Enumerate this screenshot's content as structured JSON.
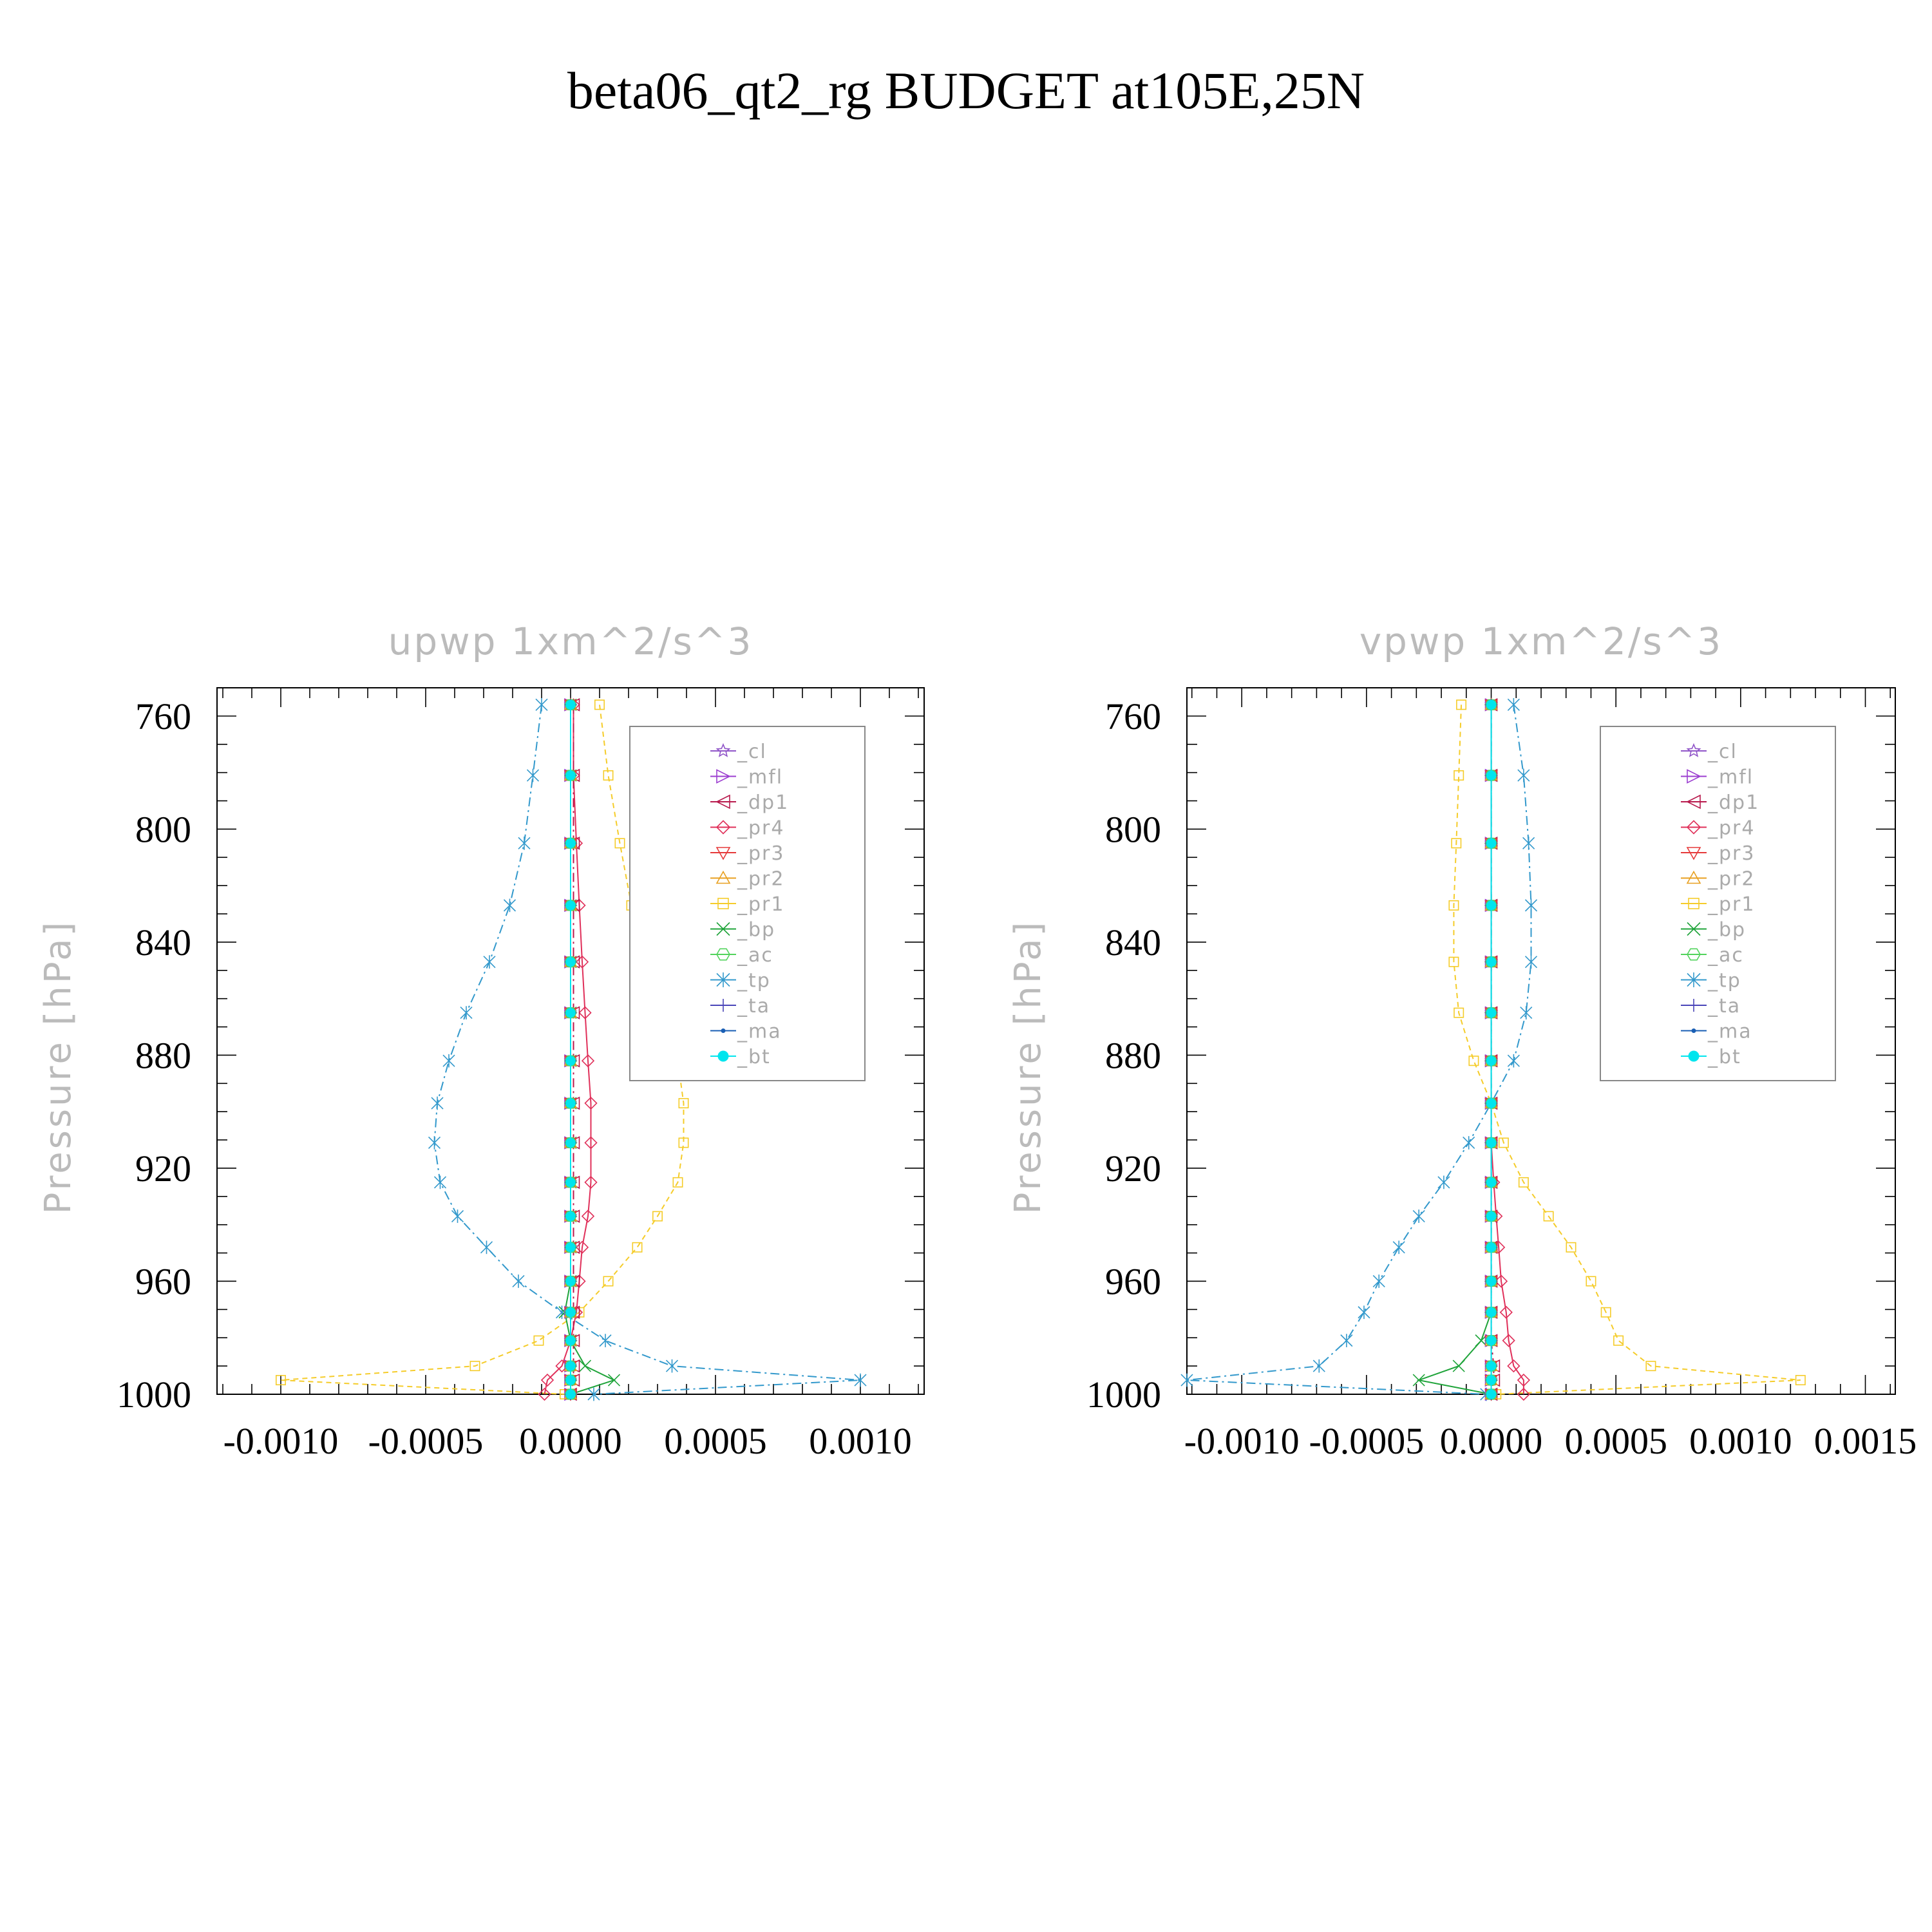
{
  "figure_title": "beta06_qt2_rg  BUDGET at105E,25N",
  "levels": [
    756,
    781,
    805,
    827,
    847,
    865,
    882,
    897,
    911,
    925,
    937,
    948,
    960,
    971,
    981,
    990,
    995,
    1000
  ],
  "series_meta": [
    {
      "key": "cl",
      "label": "_cl",
      "color": "#9055c8",
      "marker": "star",
      "dash": "none"
    },
    {
      "key": "mfl",
      "label": "_mfl",
      "color": "#9c3fd0",
      "marker": "tri-right",
      "dash": "8,6"
    },
    {
      "key": "dp1",
      "label": "_dp1",
      "color": "#b8194c",
      "marker": "tri-left",
      "dash": "14,6,3,6"
    },
    {
      "key": "pr4",
      "label": "_pr4",
      "color": "#e0305a",
      "marker": "diamond",
      "dash": "none"
    },
    {
      "key": "pr3",
      "label": "_pr3",
      "color": "#e63a3a",
      "marker": "tri-down",
      "dash": "8,6"
    },
    {
      "key": "pr2",
      "label": "_pr2",
      "color": "#e8a020",
      "marker": "tri-up",
      "dash": "14,6,3,6"
    },
    {
      "key": "pr1",
      "label": "_pr1",
      "color": "#f5cc2a",
      "marker": "square",
      "dash": "8,6"
    },
    {
      "key": "bp",
      "label": "_bp",
      "color": "#1fa43a",
      "marker": "x",
      "dash": "none"
    },
    {
      "key": "ac",
      "label": "_ac",
      "color": "#52d35c",
      "marker": "hexagon",
      "dash": "8,6"
    },
    {
      "key": "tp",
      "label": "_tp",
      "color": "#3399cc",
      "marker": "asterisk",
      "dash": "14,6,3,6"
    },
    {
      "key": "ta",
      "label": "_ta",
      "color": "#4a45b8",
      "marker": "plus",
      "dash": "8,6"
    },
    {
      "key": "ma",
      "label": "_ma",
      "color": "#1a5fb4",
      "marker": "dot",
      "dash": "14,6,3,6"
    },
    {
      "key": "bt",
      "label": "_bt",
      "color": "#00e5ee",
      "marker": "filled-circle",
      "dash": "none"
    }
  ],
  "chart_data": [
    {
      "type": "line",
      "title": "upwp    1xm^2/s^3",
      "xlabel": "",
      "ylabel": "Pressure  [hPa]",
      "xlim": [
        -0.00122,
        0.00122
      ],
      "ylim": [
        750,
        1000
      ],
      "y_reversed": true,
      "xticks": [
        -0.001,
        -0.0005,
        0,
        0.0005,
        0.001
      ],
      "xtick_labels": [
        "-0.0010",
        "-0.0005",
        "0.0000",
        "0.0005",
        "0.0010"
      ],
      "yticks": [
        760,
        800,
        840,
        880,
        920,
        960,
        1000
      ],
      "ytick_labels": [
        "760",
        "800",
        "840",
        "880",
        "920",
        "960",
        "1000"
      ],
      "legend": "upper-right",
      "series": [
        {
          "name": "_cl",
          "values": [
            0,
            0,
            0,
            0,
            0,
            0,
            0,
            0,
            0,
            0,
            0,
            0,
            0,
            0,
            0,
            0,
            0,
            0
          ]
        },
        {
          "name": "_mfl",
          "values": [
            0,
            0,
            0,
            0,
            0,
            0,
            0,
            0,
            0,
            0,
            0,
            0,
            0,
            0,
            0,
            0,
            0,
            0
          ]
        },
        {
          "name": "_dp1",
          "values": [
            1e-05,
            1e-05,
            1e-05,
            1e-05,
            1e-05,
            1e-05,
            1e-05,
            1e-05,
            1e-05,
            1e-05,
            1e-05,
            1e-05,
            1e-05,
            1e-05,
            1e-05,
            1e-05,
            1e-05,
            0
          ]
        },
        {
          "name": "_pr4",
          "values": [
            1e-05,
            1e-05,
            2e-05,
            3e-05,
            4e-05,
            5e-05,
            6e-05,
            7e-05,
            7e-05,
            7e-05,
            6e-05,
            4e-05,
            3e-05,
            2e-05,
            0,
            -3e-05,
            -8e-05,
            -9e-05
          ]
        },
        {
          "name": "_pr3",
          "values": [
            0,
            0,
            0,
            0,
            0,
            0,
            0,
            0,
            0,
            0,
            0,
            0,
            0,
            0,
            0,
            0,
            0,
            0
          ]
        },
        {
          "name": "_pr2",
          "values": [
            0,
            0,
            0,
            0,
            0,
            0,
            0,
            0,
            0,
            0,
            0,
            0,
            0,
            0,
            0,
            0,
            0,
            0
          ]
        },
        {
          "name": "_pr1",
          "values": [
            0.0001,
            0.00013,
            0.00017,
            0.00021,
            0.00027,
            0.00033,
            0.00037,
            0.00039,
            0.00039,
            0.00037,
            0.0003,
            0.00023,
            0.00013,
            3e-05,
            -0.00011,
            -0.00033,
            -0.001,
            -2e-05
          ]
        },
        {
          "name": "_bp",
          "values": [
            0,
            0,
            0,
            0,
            0,
            0,
            0,
            0,
            0,
            0,
            0,
            0,
            0,
            -2e-05,
            0,
            5e-05,
            0.00015,
            0
          ]
        },
        {
          "name": "_ac",
          "values": [
            0,
            0,
            0,
            0,
            0,
            0,
            0,
            0,
            0,
            0,
            0,
            0,
            0,
            0,
            0,
            0,
            0,
            0
          ]
        },
        {
          "name": "_tp",
          "values": [
            -0.0001,
            -0.00013,
            -0.00016,
            -0.00021,
            -0.00028,
            -0.00036,
            -0.00042,
            -0.00046,
            -0.00047,
            -0.00045,
            -0.00039,
            -0.00029,
            -0.00018,
            -3e-05,
            0.00012,
            0.00035,
            0.001,
            8e-05
          ]
        },
        {
          "name": "_ta",
          "values": [
            0,
            0,
            0,
            0,
            0,
            0,
            0,
            0,
            0,
            0,
            0,
            0,
            0,
            0,
            0,
            0,
            0,
            0
          ]
        },
        {
          "name": "_ma",
          "values": [
            0,
            0,
            0,
            0,
            0,
            0,
            0,
            0,
            0,
            0,
            0,
            0,
            0,
            0,
            0,
            0,
            0,
            0
          ]
        },
        {
          "name": "_bt",
          "values": [
            0,
            0,
            0,
            0,
            0,
            0,
            0,
            0,
            0,
            0,
            0,
            0,
            0,
            0,
            0,
            0,
            0,
            0
          ]
        }
      ]
    },
    {
      "type": "line",
      "title": "vpwp    1xm^2/s^3",
      "xlabel": "",
      "ylabel": "Pressure  [hPa]",
      "xlim": [
        -0.00122,
        0.00162
      ],
      "ylim": [
        750,
        1000
      ],
      "y_reversed": true,
      "xticks": [
        -0.001,
        -0.0005,
        0,
        0.0005,
        0.001,
        0.0015
      ],
      "xtick_labels": [
        "-0.0010",
        "-0.0005",
        "0.0000",
        "0.0005",
        "0.0010",
        "0.0015"
      ],
      "yticks": [
        760,
        800,
        840,
        880,
        920,
        960,
        1000
      ],
      "ytick_labels": [
        "760",
        "800",
        "840",
        "880",
        "920",
        "960",
        "1000"
      ],
      "legend": "upper-right",
      "series": [
        {
          "name": "_cl",
          "values": [
            0,
            0,
            0,
            0,
            0,
            0,
            0,
            0,
            0,
            0,
            0,
            0,
            0,
            0,
            0,
            0,
            0,
            0
          ]
        },
        {
          "name": "_mfl",
          "values": [
            0,
            0,
            0,
            0,
            0,
            0,
            0,
            0,
            0,
            0,
            0,
            0,
            0,
            0,
            0,
            0,
            0,
            0
          ]
        },
        {
          "name": "_dp1",
          "values": [
            0,
            0,
            0,
            0,
            0,
            0,
            0,
            0,
            0,
            0,
            0,
            0,
            0,
            0,
            0,
            1e-05,
            1e-05,
            0
          ]
        },
        {
          "name": "_pr4",
          "values": [
            0,
            0,
            0,
            0,
            0,
            0,
            0,
            0,
            0,
            1e-05,
            2e-05,
            3e-05,
            4e-05,
            6e-05,
            7e-05,
            9e-05,
            0.00013,
            0.00013
          ]
        },
        {
          "name": "_pr3",
          "values": [
            0,
            0,
            0,
            0,
            0,
            0,
            0,
            0,
            0,
            0,
            0,
            0,
            0,
            0,
            0,
            0,
            0,
            0
          ]
        },
        {
          "name": "_pr2",
          "values": [
            0,
            0,
            0,
            0,
            0,
            0,
            0,
            0,
            0,
            0,
            0,
            0,
            0,
            0,
            0,
            0,
            0,
            0
          ]
        },
        {
          "name": "_pr1",
          "values": [
            -0.00012,
            -0.00013,
            -0.00014,
            -0.00015,
            -0.00015,
            -0.00013,
            -7e-05,
            0,
            5e-05,
            0.00013,
            0.00023,
            0.00032,
            0.0004,
            0.00046,
            0.00051,
            0.00064,
            0.00124,
            2e-05
          ]
        },
        {
          "name": "_bp",
          "values": [
            0,
            0,
            0,
            0,
            0,
            0,
            0,
            0,
            0,
            0,
            0,
            0,
            0,
            0,
            -4e-05,
            -0.00013,
            -0.00029,
            0
          ]
        },
        {
          "name": "_ac",
          "values": [
            0,
            0,
            0,
            0,
            0,
            0,
            0,
            0,
            0,
            0,
            0,
            0,
            0,
            0,
            0,
            0,
            0,
            0
          ]
        },
        {
          "name": "_tp",
          "values": [
            9e-05,
            0.00013,
            0.00015,
            0.00016,
            0.00016,
            0.00014,
            9e-05,
            0,
            -9e-05,
            -0.00019,
            -0.00029,
            -0.00037,
            -0.00045,
            -0.00051,
            -0.00058,
            -0.00069,
            -0.00122,
            -2e-05
          ]
        },
        {
          "name": "_ta",
          "values": [
            0,
            0,
            0,
            0,
            0,
            0,
            0,
            0,
            0,
            0,
            0,
            0,
            0,
            0,
            0,
            0,
            0,
            0
          ]
        },
        {
          "name": "_ma",
          "values": [
            0,
            0,
            0,
            0,
            0,
            0,
            0,
            0,
            0,
            0,
            0,
            0,
            0,
            0,
            0,
            0,
            0,
            0
          ]
        },
        {
          "name": "_bt",
          "values": [
            0,
            0,
            0,
            0,
            0,
            0,
            0,
            0,
            0,
            0,
            0,
            0,
            0,
            0,
            0,
            0,
            0,
            0
          ]
        }
      ]
    }
  ]
}
